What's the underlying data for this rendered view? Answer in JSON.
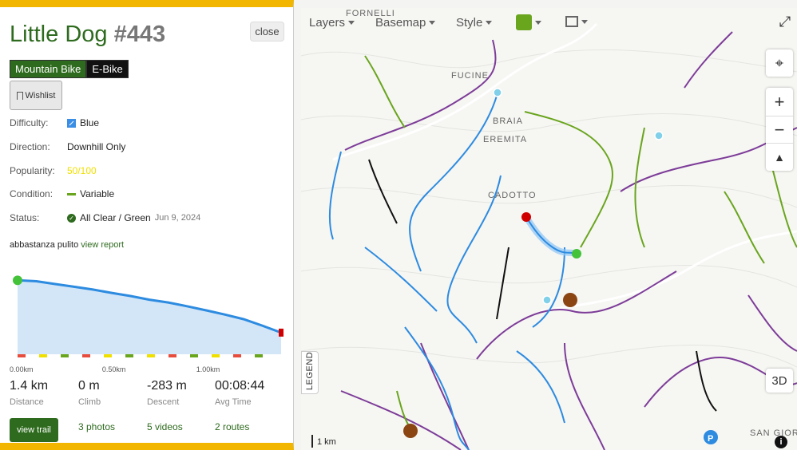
{
  "trail": {
    "name": "Little Dog",
    "number": "#443",
    "close_label": "close",
    "tags": [
      "Mountain Bike",
      "E-Bike"
    ],
    "wishlist_label": "Wishlist",
    "details": {
      "difficulty_label": "Difficulty:",
      "difficulty_value": "Blue",
      "direction_label": "Direction:",
      "direction_value": "Downhill Only",
      "popularity_label": "Popularity:",
      "popularity_value": "50/100",
      "condition_label": "Condition:",
      "condition_value": "Variable",
      "status_label": "Status:",
      "status_value": "All Clear / Green",
      "status_date": "Jun 9, 2024"
    },
    "report_text": "abbastanza pulito",
    "report_link": "view report",
    "stats": {
      "distance": "1.4 km",
      "distance_label": "Distance",
      "climb": "0 m",
      "climb_label": "Climb",
      "descent": "-283 m",
      "descent_label": "Descent",
      "avg_time": "00:08:44",
      "avg_time_label": "Avg Time"
    },
    "view_trail_label": "view trail",
    "photos": "3 photos",
    "videos": "5 videos",
    "routes": "2 routes"
  },
  "chart_data": {
    "type": "area",
    "x_ticks": [
      "0.00km",
      "0.50km",
      "1.00km"
    ],
    "x": [
      0.0,
      0.1,
      0.2,
      0.3,
      0.4,
      0.5,
      0.6,
      0.7,
      0.8,
      0.9,
      1.0,
      1.1,
      1.2,
      1.3,
      1.4
    ],
    "y": [
      1000,
      995,
      980,
      965,
      950,
      932,
      915,
      895,
      880,
      860,
      838,
      815,
      790,
      755,
      717
    ],
    "colors": {
      "line": "#2d8be0",
      "fill": "#d3e6f8",
      "start": "#43c23a",
      "end": "#d00000"
    }
  },
  "map": {
    "toolbar": [
      "Layers",
      "Basemap",
      "Style"
    ],
    "places": [
      "FORNELLI",
      "FUCINE",
      "BRAIA",
      "EREMITA",
      "CADOTTO",
      "SAN GIOR"
    ],
    "legend_label": "LEGEND",
    "scale_label": "1 km",
    "three_d_label": "3D"
  }
}
